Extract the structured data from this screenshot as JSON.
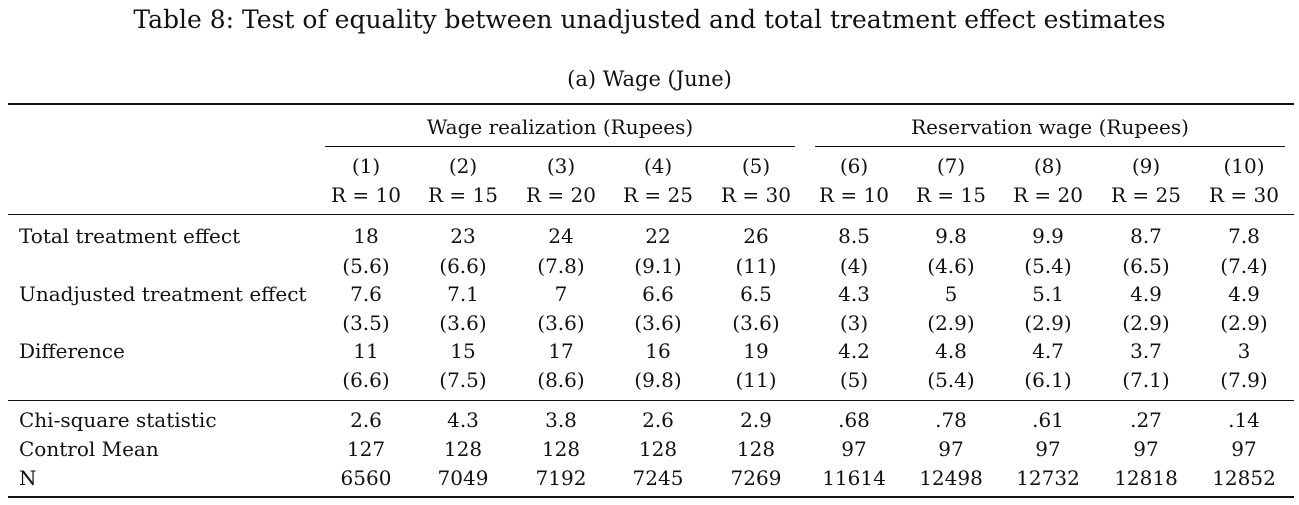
{
  "table": {
    "title": "Table 8: Test of equality between unadjusted and total treatment effect estimates",
    "subtitle": "(a) Wage (June)",
    "groups": [
      {
        "label": "Wage realization (Rupees)"
      },
      {
        "label": "Reservation wage (Rupees)"
      }
    ],
    "columns": [
      {
        "num": "(1)",
        "r": "R = 10"
      },
      {
        "num": "(2)",
        "r": "R = 15"
      },
      {
        "num": "(3)",
        "r": "R = 20"
      },
      {
        "num": "(4)",
        "r": "R = 25"
      },
      {
        "num": "(5)",
        "r": "R = 30"
      },
      {
        "num": "(6)",
        "r": "R = 10"
      },
      {
        "num": "(7)",
        "r": "R = 15"
      },
      {
        "num": "(8)",
        "r": "R = 20"
      },
      {
        "num": "(9)",
        "r": "R = 25"
      },
      {
        "num": "(10)",
        "r": "R = 30"
      }
    ],
    "rows": [
      {
        "label": "Total treatment effect",
        "values": [
          "18",
          "23",
          "24",
          "22",
          "26",
          "8.5",
          "9.8",
          "9.9",
          "8.7",
          "7.8"
        ]
      },
      {
        "label": "",
        "values": [
          "(5.6)",
          "(6.6)",
          "(7.8)",
          "(9.1)",
          "(11)",
          "(4)",
          "(4.6)",
          "(5.4)",
          "(6.5)",
          "(7.4)"
        ]
      },
      {
        "label": "Unadjusted treatment effect",
        "values": [
          "7.6",
          "7.1",
          "7",
          "6.6",
          "6.5",
          "4.3",
          "5",
          "5.1",
          "4.9",
          "4.9"
        ]
      },
      {
        "label": "",
        "values": [
          "(3.5)",
          "(3.6)",
          "(3.6)",
          "(3.6)",
          "(3.6)",
          "(3)",
          "(2.9)",
          "(2.9)",
          "(2.9)",
          "(2.9)"
        ]
      },
      {
        "label": "Difference",
        "values": [
          "11",
          "15",
          "17",
          "16",
          "19",
          "4.2",
          "4.8",
          "4.7",
          "3.7",
          "3"
        ]
      },
      {
        "label": "",
        "values": [
          "(6.6)",
          "(7.5)",
          "(8.6)",
          "(9.8)",
          "(11)",
          "(5)",
          "(5.4)",
          "(6.1)",
          "(7.1)",
          "(7.9)"
        ]
      }
    ],
    "stats_rows": [
      {
        "label": "Chi-square statistic",
        "values": [
          "2.6",
          "4.3",
          "3.8",
          "2.6",
          "2.9",
          ".68",
          ".78",
          ".61",
          ".27",
          ".14"
        ]
      },
      {
        "label": "Control Mean",
        "values": [
          "127",
          "128",
          "128",
          "128",
          "128",
          "97",
          "97",
          "97",
          "97",
          "97"
        ]
      },
      {
        "label": "N",
        "values": [
          "6560",
          "7049",
          "7192",
          "7245",
          "7269",
          "11614",
          "12498",
          "12732",
          "12818",
          "12852"
        ]
      }
    ]
  }
}
